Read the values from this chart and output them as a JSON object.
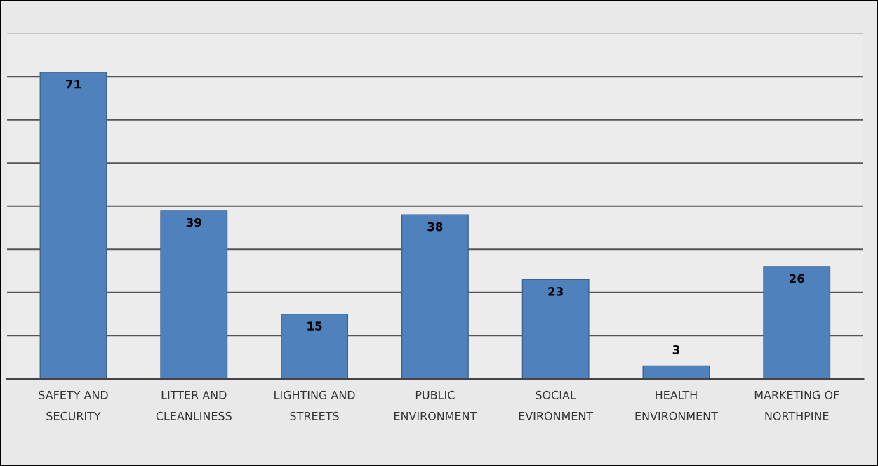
{
  "chart_data": {
    "type": "bar",
    "categories": [
      "SAFETY AND\nSECURITY",
      "LITTER AND\nCLEANLINESS",
      "LIGHTING AND\nSTREETS",
      "PUBLIC\nENVIRONMENT",
      "SOCIAL\nEVIRONMENT",
      "HEALTH\nENVIRONMENT",
      "MARKETING OF\nNORTHPINE"
    ],
    "values": [
      71,
      39,
      15,
      38,
      23,
      3,
      26
    ],
    "color": "#4f81bd",
    "ylim": [
      0,
      80
    ],
    "yticks": [
      {
        "value": 0,
        "label": null
      },
      {
        "value": 10,
        "label": null
      },
      {
        "value": 20,
        "label": null
      },
      {
        "value": 30,
        "label": null
      },
      {
        "value": 40,
        "label": null
      },
      {
        "value": 50,
        "label": null
      },
      {
        "value": 60,
        "label": null
      },
      {
        "value": 70,
        "label": null
      },
      {
        "value": 80,
        "label": null
      }
    ],
    "tick_labels": "x",
    "grid": "y",
    "data_labels": true
  }
}
